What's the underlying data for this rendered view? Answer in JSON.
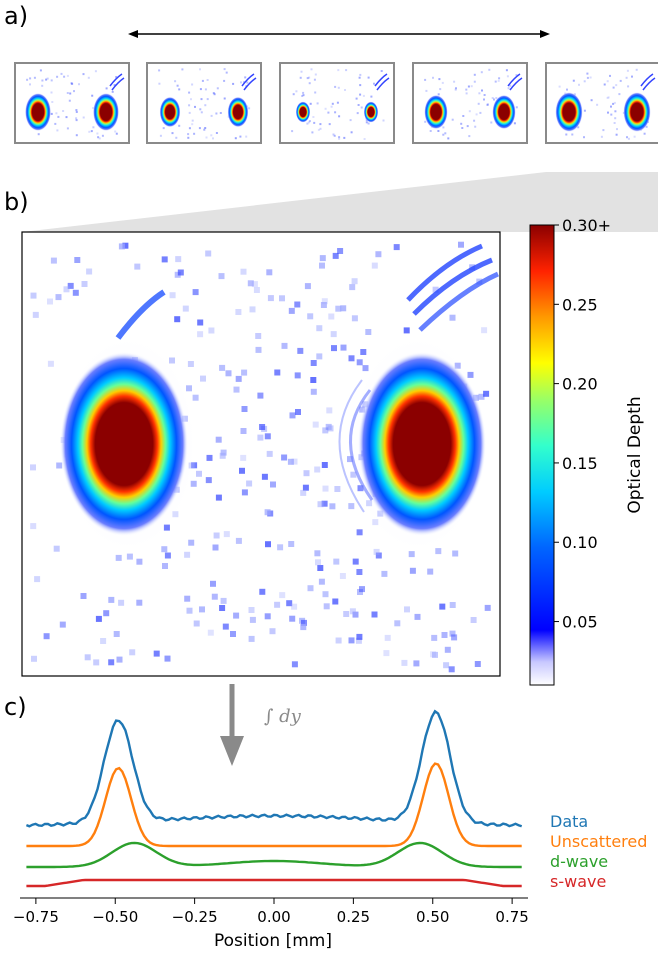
{
  "panels": {
    "a": "a)",
    "b": "b)",
    "c": "c)"
  },
  "colorbar": {
    "label": "Optical Depth",
    "ticks": [
      {
        "value": 0.3,
        "label": "0.30+"
      },
      {
        "value": 0.25,
        "label": "0.25"
      },
      {
        "value": 0.2,
        "label": "0.20"
      },
      {
        "value": 0.15,
        "label": "0.15"
      },
      {
        "value": 0.1,
        "label": "0.10"
      },
      {
        "value": 0.05,
        "label": "0.05"
      }
    ],
    "range": [
      0.01,
      0.3
    ],
    "colormap": "jet"
  },
  "integral_label": "∫ dy",
  "chart_data": {
    "type": "line",
    "xlabel": "Position [mm]",
    "xlim": [
      -0.8,
      0.8
    ],
    "xticks": [
      -0.75,
      -0.5,
      -0.25,
      0.0,
      0.25,
      0.5,
      0.75
    ],
    "xtick_labels": [
      "−0.75",
      "−0.50",
      "−0.25",
      "0.00",
      "0.25",
      "0.50",
      "0.75"
    ],
    "legend_placement": "right",
    "series": [
      {
        "name": "Data",
        "color": "#1f77b4"
      },
      {
        "name": "Unscattered",
        "color": "#ff7f0e"
      },
      {
        "name": "d-wave",
        "color": "#2ca02c"
      },
      {
        "name": "s-wave",
        "color": "#d62728"
      }
    ],
    "x": [
      -0.78,
      -0.72,
      -0.66,
      -0.6,
      -0.56,
      -0.52,
      -0.5,
      -0.48,
      -0.46,
      -0.44,
      -0.4,
      -0.34,
      -0.28,
      -0.2,
      -0.1,
      0.0,
      0.1,
      0.2,
      0.28,
      0.34,
      0.4,
      0.44,
      0.46,
      0.48,
      0.5,
      0.52,
      0.56,
      0.6,
      0.66,
      0.72,
      0.78
    ]
  }
}
